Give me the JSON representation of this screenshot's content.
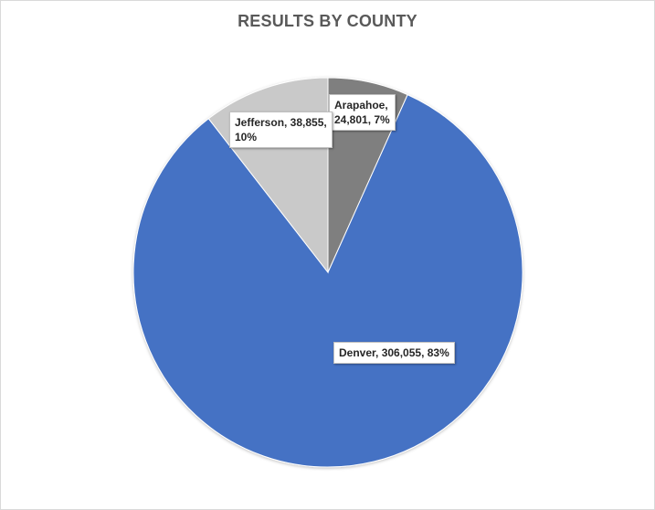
{
  "chart_data": {
    "type": "pie",
    "title": "RESULTS BY COUNTY",
    "slices": [
      {
        "name": "Arapahoe",
        "value": 24801,
        "percent": 7,
        "color": "#7f7f7f",
        "label_lines": [
          "Arapahoe,",
          "24,801, 7%"
        ]
      },
      {
        "name": "Denver",
        "value": 306055,
        "percent": 83,
        "color": "#4472c4",
        "label_lines": [
          "Denver, 306,055, 83%"
        ]
      },
      {
        "name": "Jefferson",
        "value": 38855,
        "percent": 10,
        "color": "#c9c9c9",
        "label_lines": [
          "Jefferson, 38,855,",
          "10%"
        ]
      }
    ],
    "start_angle_deg": 0,
    "direction": "clockwise",
    "legend": "none"
  }
}
